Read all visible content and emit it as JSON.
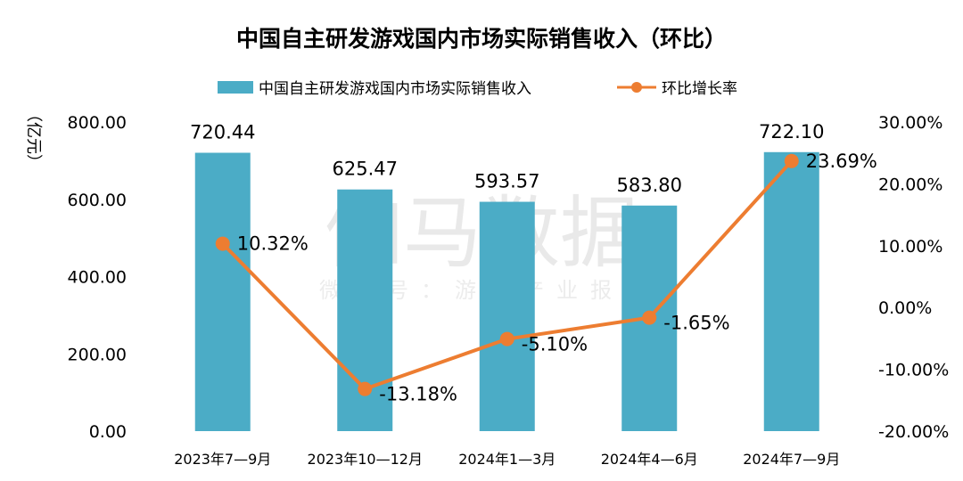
{
  "chart_data": {
    "type": "bar+line",
    "title": "中国自主研发游戏国内市场实际销售收入（环比）",
    "categories": [
      "2023年7—9月",
      "2023年10—12月",
      "2024年1—3月",
      "2024年4—6月",
      "2024年7—9月"
    ],
    "series": [
      {
        "name": "中国自主研发游戏国内市场实际销售收入",
        "type": "bar",
        "axis": "left",
        "values": [
          720.44,
          625.47,
          593.57,
          583.8,
          722.1
        ],
        "labels": [
          "720.44",
          "625.47",
          "593.57",
          "583.80",
          "722.10"
        ],
        "color": "#4bacc6"
      },
      {
        "name": "环比增长率",
        "type": "line",
        "axis": "right",
        "values": [
          10.32,
          -13.18,
          -5.1,
          -1.65,
          23.69
        ],
        "labels": [
          "10.32%",
          "-13.18%",
          "-5.10%",
          "-1.65%",
          "23.69%"
        ],
        "color": "#ed7d31"
      }
    ],
    "y_left": {
      "label": "（亿元）",
      "ylim": [
        0,
        800
      ],
      "ticks": [
        "0.00",
        "200.00",
        "400.00",
        "600.00",
        "800.00"
      ]
    },
    "y_right": {
      "ylim": [
        -20,
        30
      ],
      "ticks": [
        "-20.00%",
        "-10.00%",
        "0.00%",
        "10.00%",
        "20.00%",
        "30.00%"
      ]
    },
    "grid": false,
    "legend": "top-center"
  },
  "watermark": {
    "brand": "伽马数据",
    "subtitle": "微信号：游戏产业报告"
  }
}
